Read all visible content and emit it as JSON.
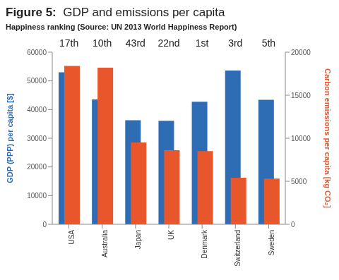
{
  "chart_data": {
    "type": "bar",
    "title": "Figure 5:  GDP and emissions per capita",
    "subtitle": "Happiness ranking (Source: UN 2013 World Happiness Report)",
    "annotations": [
      "17th",
      "10th",
      "43rd",
      "22nd",
      "1st",
      "3rd",
      "5th"
    ],
    "categories": [
      "USA",
      "Australia",
      "Japan",
      "UK",
      "Denmark",
      "Switzerland",
      "Sweden"
    ],
    "series": [
      {
        "color": "#2e6db4",
        "values": [
          53000,
          43500,
          36300,
          36100,
          42700,
          53600,
          43400
        ]
      },
      {
        "color": "#e8562c",
        "values": [
          18400,
          18200,
          9500,
          8600,
          8500,
          5400,
          5300
        ],
        "axis": "y2"
      }
    ],
    "ylabel": "GDP (PPP) per capita [$]",
    "y2label": "Carbon emissions per capita [kg CO₂]",
    "ylim": [
      0,
      60000
    ],
    "yticks": [
      0,
      10000,
      20000,
      30000,
      40000,
      50000,
      60000
    ],
    "y2lim": [
      0,
      20000
    ],
    "y2ticks": [
      0,
      5000,
      10000,
      15000,
      20000
    ],
    "grid": false
  }
}
